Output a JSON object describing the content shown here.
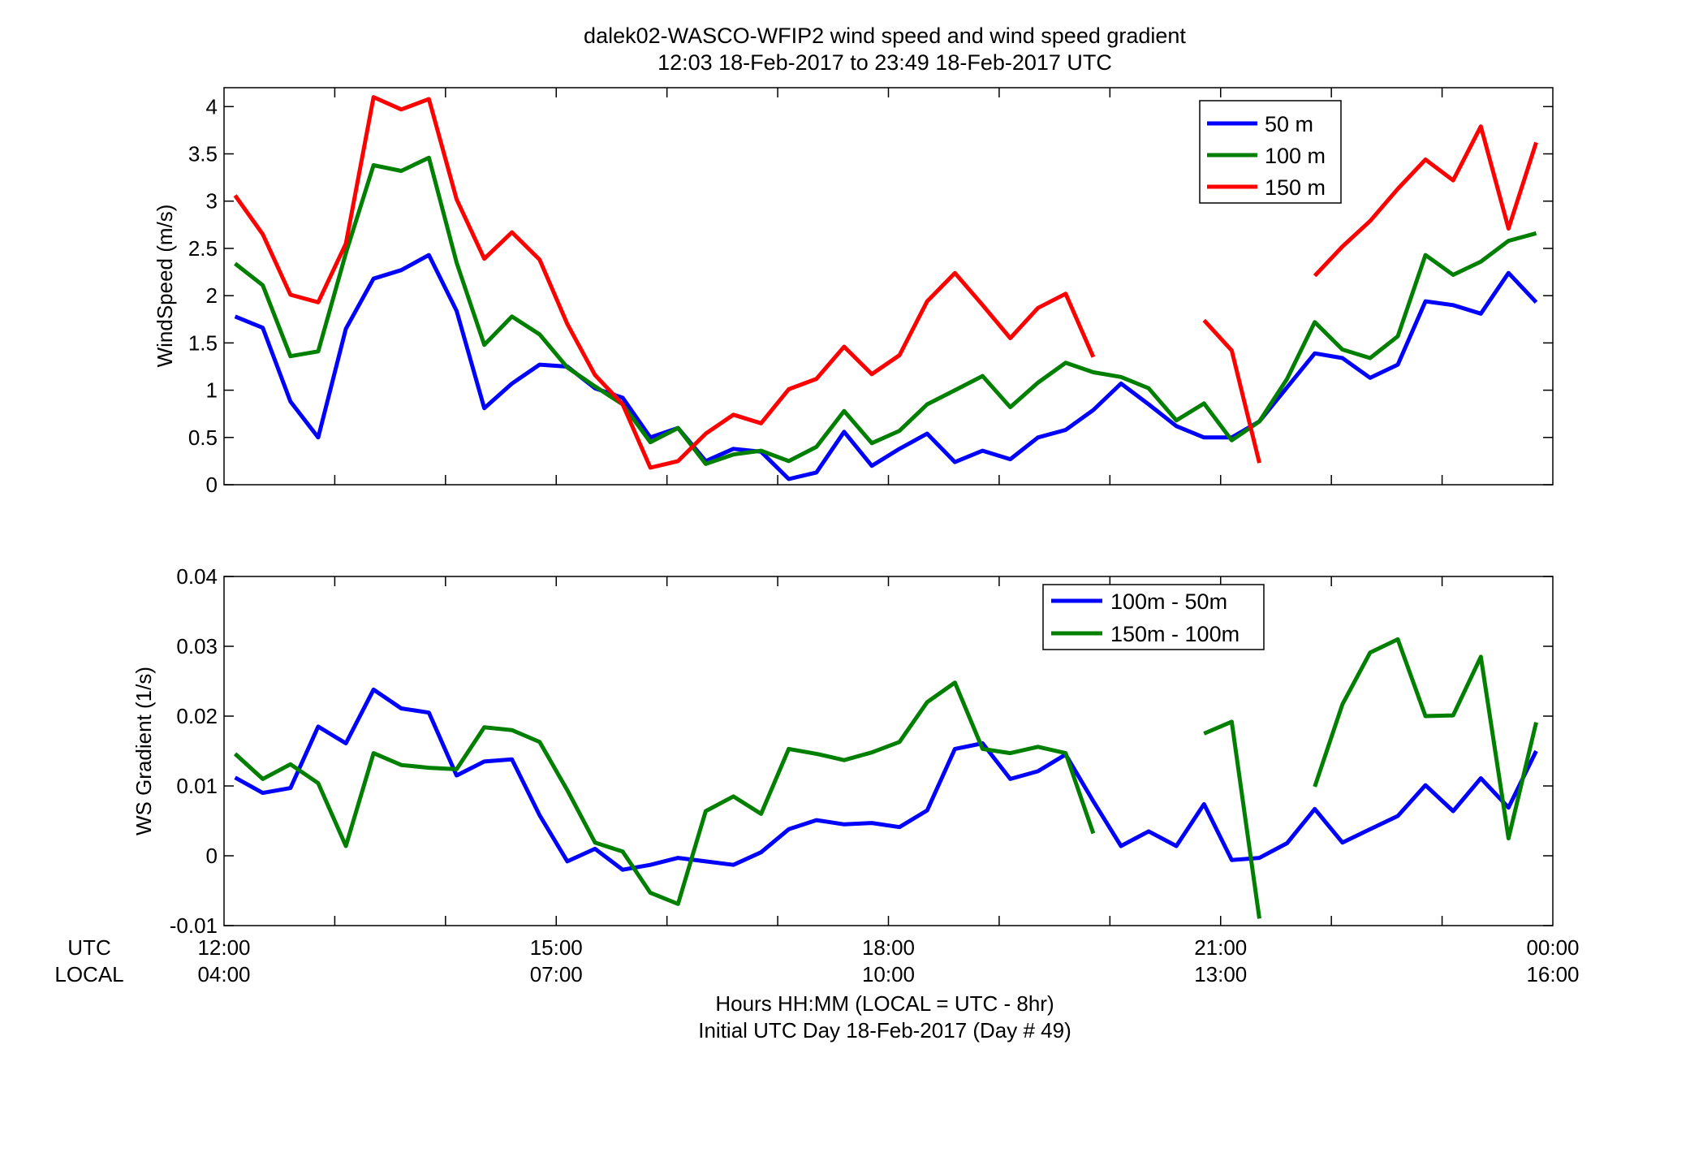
{
  "figure": {
    "title_line1": "dalek02-WASCO-WFIP2  wind speed and wind speed gradient",
    "title_line2": "12:03 18-Feb-2017 to 23:49 18-Feb-2017  UTC",
    "xlabel_line1": "Hours HH:MM  (LOCAL = UTC - 8hr)",
    "xlabel_line2": "Initial UTC Day 18-Feb-2017 (Day # 49)",
    "utc_row_label": "UTC",
    "local_row_label": "LOCAL"
  },
  "chart_data": [
    {
      "type": "line",
      "ylabel": "WindSpeed (m/s)",
      "xlim": [
        12,
        24
      ],
      "ylim": [
        0,
        4.2
      ],
      "yticks": [
        "0",
        "0.5",
        "1",
        "1.5",
        "2",
        "2.5",
        "3",
        "3.5",
        "4"
      ],
      "legend_position": "top-right",
      "series": [
        {
          "name": "50 m",
          "color": "#0000ff",
          "x": [
            12.1,
            12.35,
            12.6,
            12.85,
            13.1,
            13.35,
            13.6,
            13.85,
            14.1,
            14.35,
            14.6,
            14.85,
            15.1,
            15.35,
            15.6,
            15.85,
            16.1,
            16.35,
            16.6,
            16.85,
            17.1,
            17.35,
            17.6,
            17.85,
            18.1,
            18.35,
            18.6,
            18.85,
            19.1,
            19.35,
            19.6,
            19.85,
            20.1,
            20.35,
            20.6,
            20.85,
            21.1,
            21.35,
            21.6,
            21.85,
            22.1,
            22.35,
            22.6,
            22.85,
            23.1,
            23.35,
            23.6,
            23.85
          ],
          "y": [
            1.78,
            1.66,
            0.88,
            0.5,
            1.65,
            2.18,
            2.27,
            2.43,
            1.84,
            0.81,
            1.07,
            1.27,
            1.25,
            1.02,
            0.92,
            0.5,
            0.6,
            0.25,
            0.38,
            0.35,
            0.06,
            0.13,
            0.56,
            0.2,
            0.38,
            0.54,
            0.24,
            0.36,
            0.27,
            0.5,
            0.58,
            0.79,
            1.07,
            0.85,
            0.62,
            0.5,
            0.5,
            0.67,
            1.03,
            1.39,
            1.34,
            1.13,
            1.27,
            1.94,
            1.9,
            1.81,
            2.24,
            1.93
          ]
        },
        {
          "name": "100 m",
          "color": "#007f00",
          "x": [
            12.1,
            12.35,
            12.6,
            12.85,
            13.1,
            13.35,
            13.6,
            13.85,
            14.1,
            14.35,
            14.6,
            14.85,
            15.1,
            15.35,
            15.6,
            15.85,
            16.1,
            16.35,
            16.6,
            16.85,
            17.1,
            17.35,
            17.6,
            17.85,
            18.1,
            18.35,
            18.6,
            18.85,
            19.1,
            19.35,
            19.6,
            19.85,
            20.1,
            20.35,
            20.6,
            20.85,
            21.1,
            21.35,
            21.6,
            21.85,
            22.1,
            22.35,
            22.6,
            22.85,
            23.1,
            23.35,
            23.6,
            23.85
          ],
          "y": [
            2.34,
            2.11,
            1.36,
            1.41,
            2.45,
            3.38,
            3.32,
            3.46,
            2.35,
            1.48,
            1.78,
            1.59,
            1.24,
            1.04,
            0.85,
            0.45,
            0.6,
            0.22,
            0.32,
            0.36,
            0.25,
            0.4,
            0.78,
            0.44,
            0.57,
            0.85,
            1.0,
            1.15,
            0.82,
            1.08,
            1.29,
            1.19,
            1.14,
            1.02,
            0.68,
            0.86,
            0.47,
            0.67,
            1.12,
            1.72,
            1.43,
            1.34,
            1.57,
            2.43,
            2.22,
            2.36,
            2.58,
            2.66
          ]
        },
        {
          "name": "150 m",
          "color": "#ff0000",
          "x": [
            12.1,
            12.35,
            12.6,
            12.85,
            13.1,
            13.35,
            13.6,
            13.85,
            14.1,
            14.35,
            14.6,
            14.85,
            15.1,
            15.35,
            15.6,
            15.85,
            16.1,
            16.35,
            16.6,
            16.85,
            17.1,
            17.35,
            17.6,
            17.85,
            18.1,
            18.35,
            18.6,
            18.85,
            19.1,
            19.35,
            19.6,
            19.85,
            null,
            20.85,
            21.1,
            21.35,
            null,
            21.85,
            22.1,
            22.35,
            22.6,
            22.85,
            23.1,
            23.35,
            23.6,
            23.85
          ],
          "y": [
            3.06,
            2.65,
            2.01,
            1.93,
            2.55,
            4.1,
            3.97,
            4.08,
            3.02,
            2.39,
            2.67,
            2.38,
            1.7,
            1.16,
            0.85,
            0.18,
            0.25,
            0.54,
            0.74,
            0.65,
            1.01,
            1.12,
            1.46,
            1.17,
            1.37,
            1.94,
            2.24,
            1.9,
            1.55,
            1.87,
            2.02,
            1.35,
            null,
            1.74,
            1.42,
            0.23,
            null,
            2.21,
            2.52,
            2.79,
            3.13,
            3.44,
            3.22,
            3.79,
            2.71,
            3.62
          ]
        }
      ]
    },
    {
      "type": "line",
      "ylabel": "WS Gradient (1/s)",
      "xlim": [
        12,
        24
      ],
      "ylim": [
        -0.01,
        0.04
      ],
      "yticks": [
        "-0.01",
        "0",
        "0.01",
        "0.02",
        "0.03",
        "0.04"
      ],
      "xticks_utc": [
        "12:00",
        "15:00",
        "18:00",
        "21:00",
        "00:00"
      ],
      "xticks_local": [
        "04:00",
        "07:00",
        "10:00",
        "13:00",
        "16:00"
      ],
      "legend_position": "top-right",
      "series": [
        {
          "name": "100m - 50m",
          "color": "#0000ff",
          "x": [
            12.1,
            12.35,
            12.6,
            12.85,
            13.1,
            13.35,
            13.6,
            13.85,
            14.1,
            14.35,
            14.6,
            14.85,
            15.1,
            15.35,
            15.6,
            15.85,
            16.1,
            16.35,
            16.6,
            16.85,
            17.1,
            17.35,
            17.6,
            17.85,
            18.1,
            18.35,
            18.6,
            18.85,
            19.1,
            19.35,
            19.6,
            19.85,
            20.1,
            20.35,
            20.6,
            20.85,
            21.1,
            21.35,
            21.6,
            21.85,
            22.1,
            22.35,
            22.6,
            22.85,
            23.1,
            23.35,
            23.6,
            23.85
          ],
          "y": [
            0.0112,
            0.009,
            0.0097,
            0.0185,
            0.0161,
            0.0238,
            0.0211,
            0.0205,
            0.0115,
            0.0135,
            0.0138,
            0.0058,
            -0.0008,
            0.001,
            -0.002,
            -0.0013,
            -0.0003,
            -0.0008,
            -0.0013,
            0.0005,
            0.0038,
            0.0051,
            0.0045,
            0.0047,
            0.0041,
            0.0065,
            0.0153,
            0.0161,
            0.011,
            0.0121,
            0.0145,
            0.0078,
            0.0014,
            0.0035,
            0.0014,
            0.0074,
            -0.0006,
            -0.0003,
            0.0018,
            0.0067,
            0.0019,
            0.0038,
            0.0057,
            0.0101,
            0.0064,
            0.0111,
            0.0069,
            0.015
          ]
        },
        {
          "name": "150m - 100m",
          "color": "#007f00",
          "x": [
            12.1,
            12.35,
            12.6,
            12.85,
            13.1,
            13.35,
            13.6,
            13.85,
            14.1,
            14.35,
            14.6,
            14.85,
            15.1,
            15.35,
            15.6,
            15.85,
            16.1,
            16.35,
            16.6,
            16.85,
            17.1,
            17.35,
            17.6,
            17.85,
            18.1,
            18.35,
            18.6,
            18.85,
            19.1,
            19.35,
            19.6,
            19.85,
            null,
            20.85,
            21.1,
            21.35,
            null,
            21.85,
            22.1,
            22.35,
            22.6,
            22.85,
            23.1,
            23.35,
            23.6,
            23.85
          ],
          "y": [
            0.0146,
            0.011,
            0.0131,
            0.0104,
            0.0014,
            0.0147,
            0.013,
            0.0126,
            0.0124,
            0.0184,
            0.018,
            0.0163,
            0.0094,
            0.0019,
            0.0006,
            -0.0053,
            -0.0069,
            0.0064,
            0.0085,
            0.006,
            0.0153,
            0.0146,
            0.0137,
            0.0148,
            0.0163,
            0.022,
            0.0248,
            0.0153,
            0.0147,
            0.0156,
            0.0147,
            0.0032,
            null,
            0.0175,
            0.0192,
            -0.009,
            null,
            0.0099,
            0.0217,
            0.0291,
            0.031,
            0.02,
            0.0201,
            0.0285,
            0.0025,
            0.0191
          ]
        }
      ]
    }
  ]
}
